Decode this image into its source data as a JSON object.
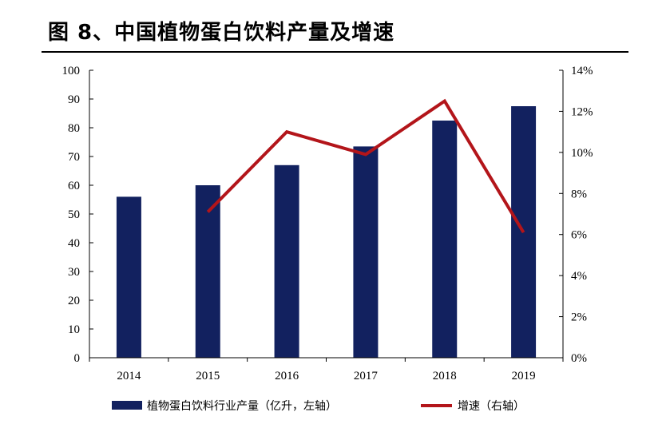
{
  "title": "图 8、中国植物蛋白饮料产量及增速",
  "chart_data": {
    "type": "bar+line",
    "categories": [
      "2014",
      "2015",
      "2016",
      "2017",
      "2018",
      "2019"
    ],
    "series": [
      {
        "name": "植物蛋白饮料行业产量（亿升，左轴）",
        "type": "bar",
        "axis": "left",
        "color": "#12215f",
        "values": [
          56,
          60,
          67,
          73.5,
          82.5,
          87.5
        ]
      },
      {
        "name": "增速（右轴）",
        "type": "line",
        "axis": "right",
        "color": "#b3151a",
        "values": [
          null,
          7.1,
          11.0,
          9.9,
          12.5,
          6.1
        ]
      }
    ],
    "y_left": {
      "min": 0,
      "max": 100,
      "step": 10,
      "ticks": [
        "0",
        "10",
        "20",
        "30",
        "40",
        "50",
        "60",
        "70",
        "80",
        "90",
        "100"
      ]
    },
    "y_right": {
      "min": 0,
      "max": 14,
      "step": 2,
      "ticks": [
        "0%",
        "2%",
        "4%",
        "6%",
        "8%",
        "10%",
        "12%",
        "14%"
      ]
    },
    "grid": false,
    "legend_position": "bottom"
  }
}
